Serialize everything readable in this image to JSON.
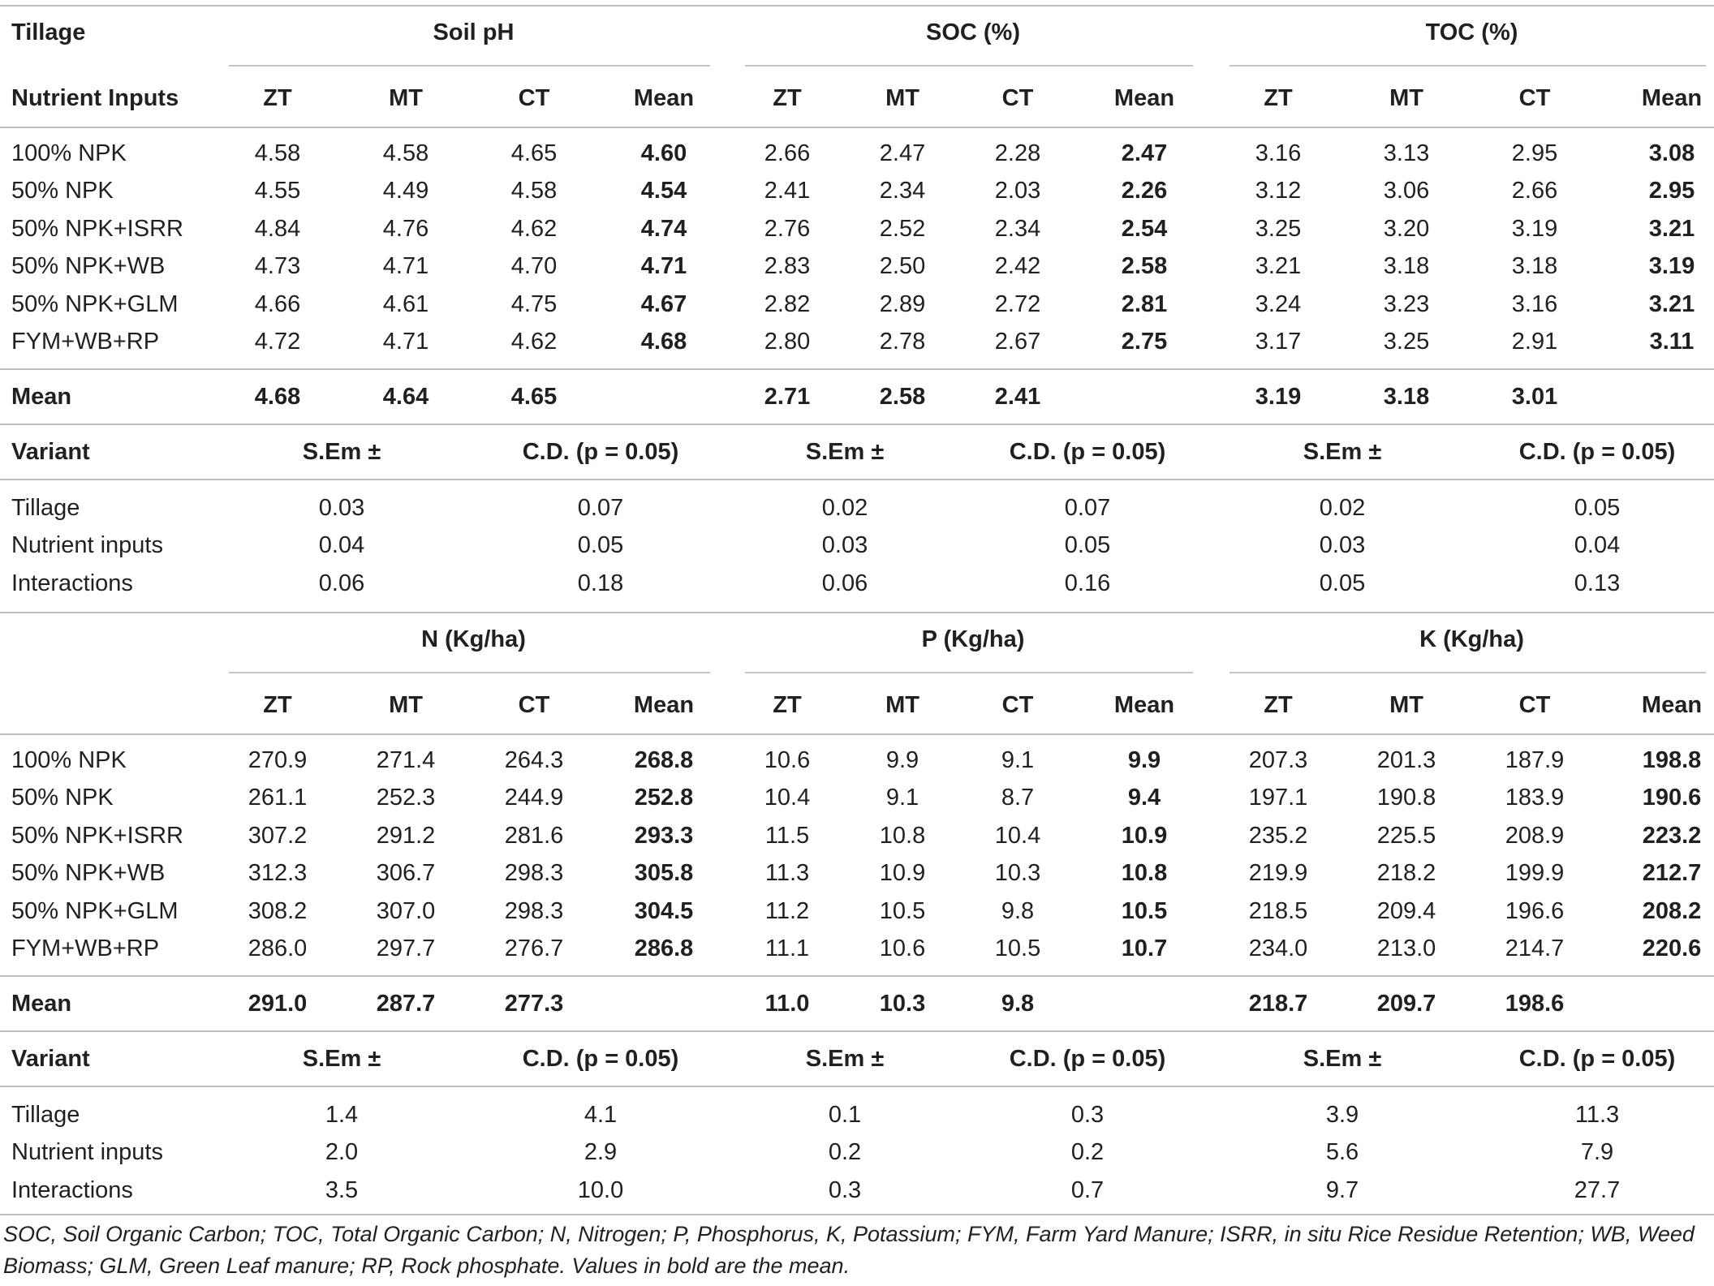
{
  "table": {
    "blocks": [
      {
        "header_label": "Tillage",
        "groups": [
          "Soil pH",
          "SOC (%)",
          "TOC (%)"
        ],
        "subheader_label": "Nutrient Inputs",
        "subcols": [
          "ZT",
          "MT",
          "CT",
          "Mean"
        ],
        "rows": [
          {
            "label": "100% NPK",
            "values": [
              "4.58",
              "4.58",
              "4.65",
              "4.60",
              "2.66",
              "2.47",
              "2.28",
              "2.47",
              "3.16",
              "3.13",
              "2.95",
              "3.08"
            ]
          },
          {
            "label": "50% NPK",
            "values": [
              "4.55",
              "4.49",
              "4.58",
              "4.54",
              "2.41",
              "2.34",
              "2.03",
              "2.26",
              "3.12",
              "3.06",
              "2.66",
              "2.95"
            ]
          },
          {
            "label": "50% NPK+ISRR",
            "values": [
              "4.84",
              "4.76",
              "4.62",
              "4.74",
              "2.76",
              "2.52",
              "2.34",
              "2.54",
              "3.25",
              "3.20",
              "3.19",
              "3.21"
            ]
          },
          {
            "label": "50% NPK+WB",
            "values": [
              "4.73",
              "4.71",
              "4.70",
              "4.71",
              "2.83",
              "2.50",
              "2.42",
              "2.58",
              "3.21",
              "3.18",
              "3.18",
              "3.19"
            ]
          },
          {
            "label": "50% NPK+GLM",
            "values": [
              "4.66",
              "4.61",
              "4.75",
              "4.67",
              "2.82",
              "2.89",
              "2.72",
              "2.81",
              "3.24",
              "3.23",
              "3.16",
              "3.21"
            ]
          },
          {
            "label": "FYM+WB+RP",
            "values": [
              "4.72",
              "4.71",
              "4.62",
              "4.68",
              "2.80",
              "2.78",
              "2.67",
              "2.75",
              "3.17",
              "3.25",
              "2.91",
              "3.11"
            ]
          }
        ],
        "mean_row": {
          "label": "Mean",
          "values": [
            "4.68",
            "4.64",
            "4.65",
            "",
            "2.71",
            "2.58",
            "2.41",
            "",
            "3.19",
            "3.18",
            "3.01",
            ""
          ]
        },
        "variant_header": {
          "label": "Variant",
          "cols": [
            "S.Em ±",
            "C.D. (p = 0.05)",
            "S.Em ±",
            "C.D. (p = 0.05)",
            "S.Em ±",
            "C.D. (p = 0.05)"
          ]
        },
        "variant_rows": [
          {
            "label": "Tillage",
            "values": [
              "0.03",
              "0.07",
              "0.02",
              "0.07",
              "0.02",
              "0.05"
            ]
          },
          {
            "label": "Nutrient inputs",
            "values": [
              "0.04",
              "0.05",
              "0.03",
              "0.05",
              "0.03",
              "0.04"
            ]
          },
          {
            "label": "Interactions",
            "values": [
              "0.06",
              "0.18",
              "0.06",
              "0.16",
              "0.05",
              "0.13"
            ]
          }
        ]
      },
      {
        "header_label": "",
        "groups": [
          "N (Kg/ha)",
          "P (Kg/ha)",
          "K (Kg/ha)"
        ],
        "subheader_label": "",
        "subcols": [
          "ZT",
          "MT",
          "CT",
          "Mean"
        ],
        "rows": [
          {
            "label": "100% NPK",
            "values": [
              "270.9",
              "271.4",
              "264.3",
              "268.8",
              "10.6",
              "9.9",
              "9.1",
              "9.9",
              "207.3",
              "201.3",
              "187.9",
              "198.8"
            ]
          },
          {
            "label": "50% NPK",
            "values": [
              "261.1",
              "252.3",
              "244.9",
              "252.8",
              "10.4",
              "9.1",
              "8.7",
              "9.4",
              "197.1",
              "190.8",
              "183.9",
              "190.6"
            ]
          },
          {
            "label": "50% NPK+ISRR",
            "values": [
              "307.2",
              "291.2",
              "281.6",
              "293.3",
              "11.5",
              "10.8",
              "10.4",
              "10.9",
              "235.2",
              "225.5",
              "208.9",
              "223.2"
            ]
          },
          {
            "label": "50% NPK+WB",
            "values": [
              "312.3",
              "306.7",
              "298.3",
              "305.8",
              "11.3",
              "10.9",
              "10.3",
              "10.8",
              "219.9",
              "218.2",
              "199.9",
              "212.7"
            ]
          },
          {
            "label": "50% NPK+GLM",
            "values": [
              "308.2",
              "307.0",
              "298.3",
              "304.5",
              "11.2",
              "10.5",
              "9.8",
              "10.5",
              "218.5",
              "209.4",
              "196.6",
              "208.2"
            ]
          },
          {
            "label": "FYM+WB+RP",
            "values": [
              "286.0",
              "297.7",
              "276.7",
              "286.8",
              "11.1",
              "10.6",
              "10.5",
              "10.7",
              "234.0",
              "213.0",
              "214.7",
              "220.6"
            ]
          }
        ],
        "mean_row": {
          "label": "Mean",
          "values": [
            "291.0",
            "287.7",
            "277.3",
            "",
            "11.0",
            "10.3",
            "9.8",
            "",
            "218.7",
            "209.7",
            "198.6",
            ""
          ]
        },
        "variant_header": {
          "label": "Variant",
          "cols": [
            "S.Em ±",
            "C.D. (p = 0.05)",
            "S.Em ±",
            "C.D. (p = 0.05)",
            "S.Em ±",
            "C.D. (p = 0.05)"
          ]
        },
        "variant_rows": [
          {
            "label": "Tillage",
            "values": [
              "1.4",
              "4.1",
              "0.1",
              "0.3",
              "3.9",
              "11.3"
            ]
          },
          {
            "label": "Nutrient inputs",
            "values": [
              "2.0",
              "2.9",
              "0.2",
              "0.2",
              "5.6",
              "7.9"
            ]
          },
          {
            "label": "Interactions",
            "values": [
              "3.5",
              "10.0",
              "0.3",
              "0.7",
              "9.7",
              "27.7"
            ]
          }
        ]
      }
    ]
  },
  "footnote": "SOC, Soil Organic Carbon; TOC, Total Organic Carbon; N, Nitrogen; P, Phosphorus, K, Potassium; FYM, Farm Yard Manure; ISRR, in situ Rice Residue Retention; WB, Weed Biomass; GLM, Green Leaf manure; RP, Rock phosphate. Values in bold are the mean."
}
